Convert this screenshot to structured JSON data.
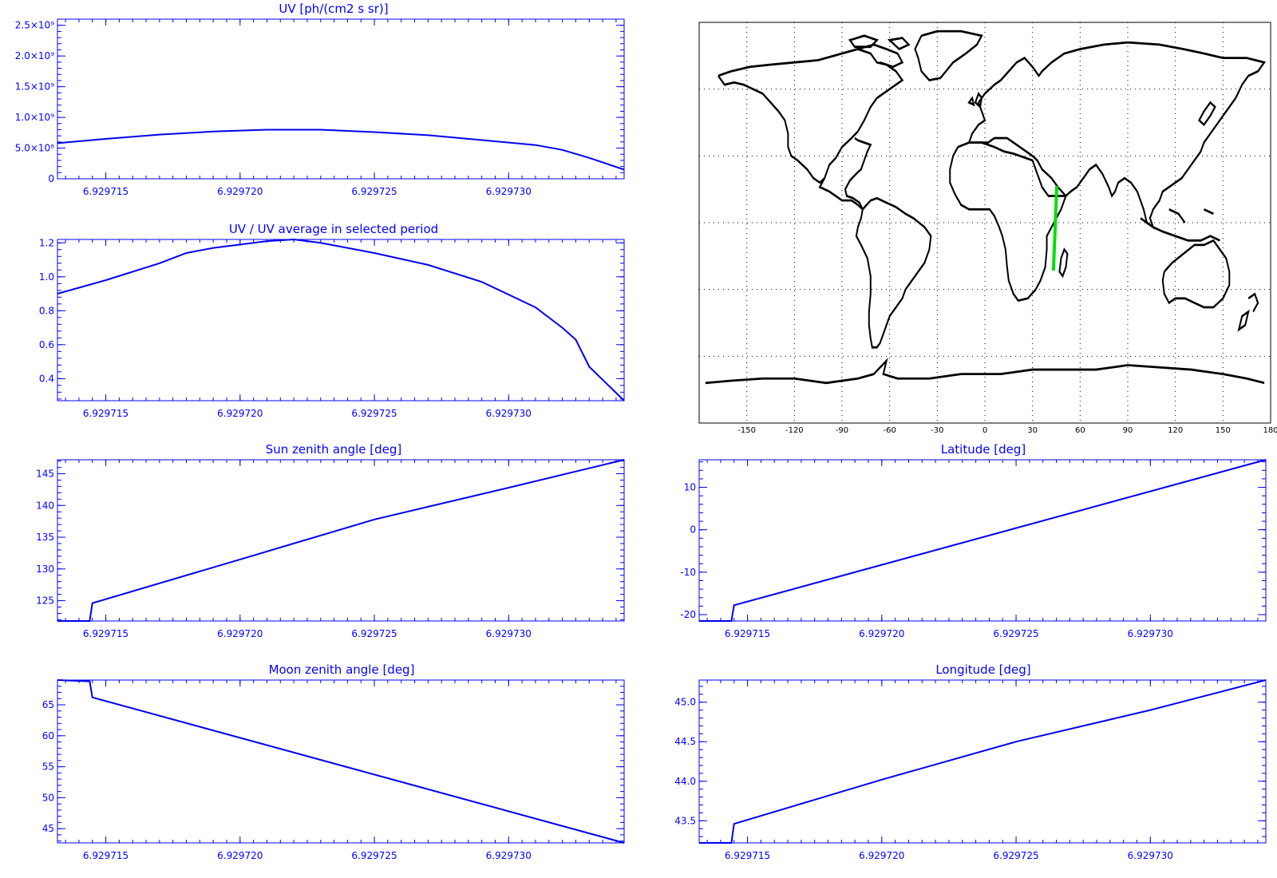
{
  "chart_data": [
    {
      "id": "uv",
      "type": "line",
      "title": "UV [ph/(cm2 s sr)]",
      "xlabel": "",
      "ylabel": "",
      "xlim": [
        6.9297132,
        6.9297343
      ],
      "ylim": [
        0,
        2600000000.0
      ],
      "xticks": [
        6.929715,
        6.92972,
        6.929725,
        6.92973
      ],
      "xtick_labels": [
        "6.929715",
        "6.929720",
        "6.929725",
        "6.929730"
      ],
      "yticks": [
        0,
        500000000.0,
        1000000000.0,
        1500000000.0,
        2000000000.0,
        2500000000.0
      ],
      "ytick_labels": [
        "0",
        "5.0×10⁸",
        "1.0×10⁹",
        "1.5×10⁹",
        "2.0×10⁹",
        "2.5×10⁹"
      ],
      "series": [
        {
          "color": "#0000ee",
          "x": [
            6.9297132,
            6.929715,
            6.929717,
            6.929719,
            6.929721,
            6.929723,
            6.929725,
            6.929727,
            6.929729,
            6.929731,
            6.929732,
            6.929733,
            6.9297343
          ],
          "y": [
            580000000.0,
            650000000.0,
            720000000.0,
            770000000.0,
            800000000.0,
            800000000.0,
            760000000.0,
            710000000.0,
            630000000.0,
            550000000.0,
            470000000.0,
            340000000.0,
            150000000.0
          ]
        }
      ]
    },
    {
      "id": "uv-ratio",
      "type": "line",
      "title": "UV / UV average in selected period",
      "xlabel": "",
      "ylabel": "",
      "xlim": [
        6.9297132,
        6.9297343
      ],
      "ylim": [
        0.27,
        1.22
      ],
      "xticks": [
        6.929715,
        6.92972,
        6.929725,
        6.92973
      ],
      "xtick_labels": [
        "6.929715",
        "6.929720",
        "6.929725",
        "6.929730"
      ],
      "yticks": [
        0.4,
        0.6,
        0.8,
        1.0,
        1.2
      ],
      "ytick_labels": [
        "0.4",
        "0.6",
        "0.8",
        "1.0",
        "1.2"
      ],
      "series": [
        {
          "color": "#0000ee",
          "x": [
            6.9297132,
            6.929715,
            6.929717,
            6.929718,
            6.929719,
            6.929721,
            6.929722,
            6.929723,
            6.929725,
            6.929727,
            6.929729,
            6.929731,
            6.929732,
            6.9297325,
            6.929733,
            6.9297343
          ],
          "y": [
            0.9,
            0.98,
            1.08,
            1.14,
            1.17,
            1.21,
            1.22,
            1.2,
            1.14,
            1.07,
            0.97,
            0.82,
            0.7,
            0.63,
            0.47,
            0.27
          ]
        }
      ]
    },
    {
      "id": "sun-zenith",
      "type": "line",
      "title": "Sun zenith angle [deg]",
      "xlabel": "",
      "ylabel": "",
      "xlim": [
        6.9297132,
        6.9297343
      ],
      "ylim": [
        121.8,
        147.2
      ],
      "xticks": [
        6.929715,
        6.92972,
        6.929725,
        6.92973
      ],
      "xtick_labels": [
        "6.929715",
        "6.929720",
        "6.929725",
        "6.929730"
      ],
      "yticks": [
        125,
        130,
        135,
        140,
        145
      ],
      "ytick_labels": [
        "125",
        "130",
        "135",
        "140",
        "145"
      ],
      "series": [
        {
          "color": "#0000ee",
          "x": [
            6.9297132,
            6.9297144,
            6.9297145,
            6.92972,
            6.929725,
            6.92973,
            6.9297343
          ],
          "y": [
            121.8,
            121.8,
            124.6,
            131.5,
            137.8,
            142.8,
            147.2
          ]
        }
      ]
    },
    {
      "id": "latitude",
      "type": "line",
      "title": "Latitude [deg]",
      "xlabel": "",
      "ylabel": "",
      "xlim": [
        6.9297132,
        6.9297343
      ],
      "ylim": [
        -21.5,
        16.5
      ],
      "xticks": [
        6.929715,
        6.92972,
        6.929725,
        6.92973
      ],
      "xtick_labels": [
        "6.929715",
        "6.929720",
        "6.929725",
        "6.929730"
      ],
      "yticks": [
        -20,
        -10,
        0,
        10
      ],
      "ytick_labels": [
        "-20",
        "-10",
        "0",
        "10"
      ],
      "series": [
        {
          "color": "#0000ee",
          "x": [
            6.9297132,
            6.9297144,
            6.9297145,
            6.9297343
          ],
          "y": [
            -21.5,
            -21.5,
            -17.8,
            16.5
          ]
        }
      ]
    },
    {
      "id": "moon-zenith",
      "type": "line",
      "title": "Moon zenith angle [deg]",
      "xlabel": "",
      "ylabel": "",
      "xlim": [
        6.9297132,
        6.9297343
      ],
      "ylim": [
        42.7,
        69
      ],
      "xticks": [
        6.929715,
        6.92972,
        6.929725,
        6.92973
      ],
      "xtick_labels": [
        "6.929715",
        "6.929720",
        "6.929725",
        "6.929730"
      ],
      "yticks": [
        45,
        50,
        55,
        60,
        65
      ],
      "ytick_labels": [
        "45",
        "50",
        "55",
        "60",
        "65"
      ],
      "series": [
        {
          "color": "#0000ee",
          "x": [
            6.9297132,
            6.9297144,
            6.9297145,
            6.9297343
          ],
          "y": [
            69,
            68.8,
            66.2,
            42.7
          ]
        }
      ]
    },
    {
      "id": "longitude",
      "type": "line",
      "title": "Longitude [deg]",
      "xlabel": "",
      "ylabel": "",
      "xlim": [
        6.9297132,
        6.9297343
      ],
      "ylim": [
        43.22,
        45.28
      ],
      "xticks": [
        6.929715,
        6.92972,
        6.929725,
        6.92973
      ],
      "xtick_labels": [
        "6.929715",
        "6.929720",
        "6.929725",
        "6.929730"
      ],
      "yticks": [
        43.5,
        44.0,
        44.5,
        45.0
      ],
      "ytick_labels": [
        "43.5",
        "44.0",
        "44.5",
        "45.0"
      ],
      "series": [
        {
          "color": "#0000ee",
          "x": [
            6.9297132,
            6.9297144,
            6.9297145,
            6.92972,
            6.929725,
            6.92973,
            6.9297343
          ],
          "y": [
            43.22,
            43.22,
            43.46,
            44.02,
            44.5,
            44.9,
            45.28
          ]
        }
      ]
    }
  ],
  "map": {
    "lon_range": [
      -180,
      180
    ],
    "lat_range": [
      -90,
      90
    ],
    "lon_ticks": [
      -150,
      -120,
      -90,
      -60,
      -30,
      0,
      30,
      60,
      90,
      120,
      150,
      180
    ],
    "lon_tick_labels": [
      "-150",
      "-120",
      "-90",
      "-60",
      "-30",
      "0",
      "30",
      "60",
      "90",
      "120",
      "150",
      "180"
    ],
    "grid_lat": [
      -60,
      -30,
      0,
      30,
      60
    ],
    "track_color": "#00e000",
    "track": {
      "lon": [
        45.3,
        43.2
      ],
      "lat": [
        16.5,
        -21.5
      ]
    }
  }
}
